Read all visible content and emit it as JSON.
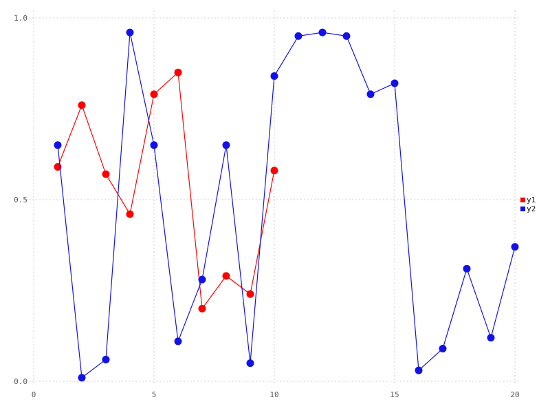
{
  "chart_data": {
    "type": "line",
    "title": "",
    "xlabel": "",
    "ylabel": "",
    "xlim": [
      0,
      20
    ],
    "ylim": [
      0.0,
      1.0
    ],
    "grid": true,
    "grid_style": "dotted",
    "xticks": [
      0,
      5,
      10,
      15,
      20
    ],
    "xtick_labels": [
      "0",
      "5",
      "10",
      "15",
      "20"
    ],
    "yticks": [
      0.0,
      0.5,
      1.0
    ],
    "ytick_labels": [
      "0.0",
      "0.5",
      "1.0"
    ],
    "legend": {
      "position": "right",
      "entries": [
        "y1",
        "y2"
      ]
    },
    "series": [
      {
        "name": "y1",
        "color": "#ff0000",
        "marker": "circle",
        "x": [
          1,
          2,
          3,
          4,
          5,
          6,
          7,
          8,
          9,
          10
        ],
        "y": [
          0.59,
          0.76,
          0.57,
          0.46,
          0.79,
          0.85,
          0.2,
          0.29,
          0.24,
          0.58
        ]
      },
      {
        "name": "y2",
        "color": "#1212e8",
        "marker": "circle",
        "x": [
          1,
          2,
          3,
          4,
          5,
          6,
          7,
          8,
          9,
          10,
          11,
          12,
          13,
          14,
          15,
          16,
          17,
          18,
          19,
          20
        ],
        "y": [
          0.65,
          0.01,
          0.06,
          0.96,
          0.65,
          0.11,
          0.28,
          0.65,
          0.05,
          0.84,
          0.95,
          0.96,
          0.95,
          0.79,
          0.82,
          0.03,
          0.09,
          0.31,
          0.12,
          0.37
        ]
      }
    ],
    "colors": {
      "background": "#ffffff",
      "gridline": "#ccccdd",
      "tick_label": "#555555",
      "legend_text": "#111111"
    }
  }
}
